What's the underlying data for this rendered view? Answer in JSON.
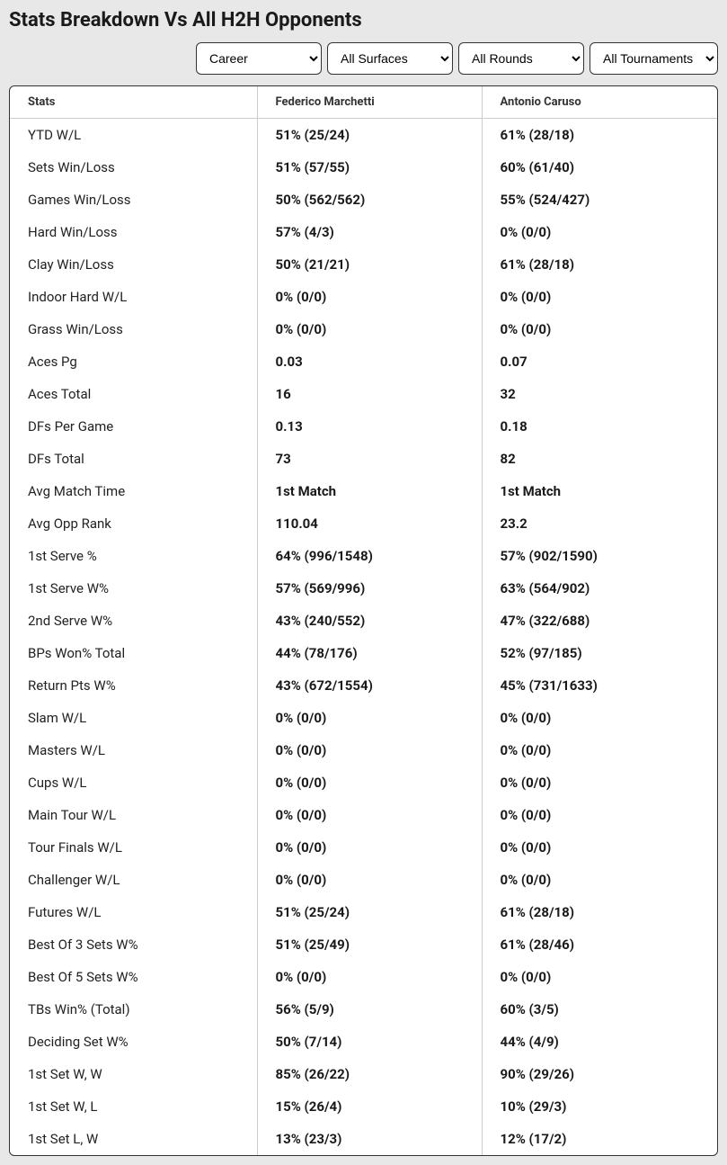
{
  "title": "Stats Breakdown Vs All H2H Opponents",
  "filters": {
    "period": {
      "selected": "Career"
    },
    "surface": {
      "selected": "All Surfaces"
    },
    "round": {
      "selected": "All Rounds"
    },
    "tournament": {
      "selected": "All Tournaments"
    }
  },
  "columns": {
    "stats": "Stats",
    "player1": "Federico Marchetti",
    "player2": "Antonio Caruso"
  },
  "rows": [
    {
      "label": "YTD W/L",
      "p1": "51% (25/24)",
      "p2": "61% (28/18)"
    },
    {
      "label": "Sets Win/Loss",
      "p1": "51% (57/55)",
      "p2": "60% (61/40)"
    },
    {
      "label": "Games Win/Loss",
      "p1": "50% (562/562)",
      "p2": "55% (524/427)"
    },
    {
      "label": "Hard Win/Loss",
      "p1": "57% (4/3)",
      "p2": "0% (0/0)"
    },
    {
      "label": "Clay Win/Loss",
      "p1": "50% (21/21)",
      "p2": "61% (28/18)"
    },
    {
      "label": "Indoor Hard W/L",
      "p1": "0% (0/0)",
      "p2": "0% (0/0)"
    },
    {
      "label": "Grass Win/Loss",
      "p1": "0% (0/0)",
      "p2": "0% (0/0)"
    },
    {
      "label": "Aces Pg",
      "p1": "0.03",
      "p2": "0.07"
    },
    {
      "label": "Aces Total",
      "p1": "16",
      "p2": "32"
    },
    {
      "label": "DFs Per Game",
      "p1": "0.13",
      "p2": "0.18"
    },
    {
      "label": "DFs Total",
      "p1": "73",
      "p2": "82"
    },
    {
      "label": "Avg Match Time",
      "p1": "1st Match",
      "p2": "1st Match"
    },
    {
      "label": "Avg Opp Rank",
      "p1": "110.04",
      "p2": "23.2"
    },
    {
      "label": "1st Serve %",
      "p1": "64% (996/1548)",
      "p2": "57% (902/1590)"
    },
    {
      "label": "1st Serve W%",
      "p1": "57% (569/996)",
      "p2": "63% (564/902)"
    },
    {
      "label": "2nd Serve W%",
      "p1": "43% (240/552)",
      "p2": "47% (322/688)"
    },
    {
      "label": "BPs Won% Total",
      "p1": "44% (78/176)",
      "p2": "52% (97/185)"
    },
    {
      "label": "Return Pts W%",
      "p1": "43% (672/1554)",
      "p2": "45% (731/1633)"
    },
    {
      "label": "Slam W/L",
      "p1": "0% (0/0)",
      "p2": "0% (0/0)"
    },
    {
      "label": "Masters W/L",
      "p1": "0% (0/0)",
      "p2": "0% (0/0)"
    },
    {
      "label": "Cups W/L",
      "p1": "0% (0/0)",
      "p2": "0% (0/0)"
    },
    {
      "label": "Main Tour W/L",
      "p1": "0% (0/0)",
      "p2": "0% (0/0)"
    },
    {
      "label": "Tour Finals W/L",
      "p1": "0% (0/0)",
      "p2": "0% (0/0)"
    },
    {
      "label": "Challenger W/L",
      "p1": "0% (0/0)",
      "p2": "0% (0/0)"
    },
    {
      "label": "Futures W/L",
      "p1": "51% (25/24)",
      "p2": "61% (28/18)"
    },
    {
      "label": "Best Of 3 Sets W%",
      "p1": "51% (25/49)",
      "p2": "61% (28/46)"
    },
    {
      "label": "Best Of 5 Sets W%",
      "p1": "0% (0/0)",
      "p2": "0% (0/0)"
    },
    {
      "label": "TBs Win% (Total)",
      "p1": "56% (5/9)",
      "p2": "60% (3/5)"
    },
    {
      "label": "Deciding Set W%",
      "p1": "50% (7/14)",
      "p2": "44% (4/9)"
    },
    {
      "label": "1st Set W, W",
      "p1": "85% (26/22)",
      "p2": "90% (29/26)"
    },
    {
      "label": "1st Set W, L",
      "p1": "15% (26/4)",
      "p2": "10% (29/3)"
    },
    {
      "label": "1st Set L, W",
      "p1": "13% (23/3)",
      "p2": "12% (17/2)"
    }
  ]
}
